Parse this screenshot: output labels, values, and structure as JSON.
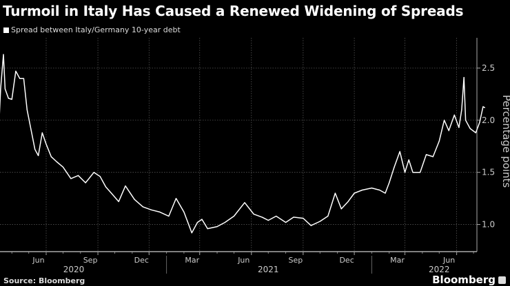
{
  "chart_data": {
    "type": "line",
    "title": "Turmoil in Italy Has Caused a Renewed Widening of Spreads",
    "legend": [
      "Spread between Italy/Germany 10-year debt"
    ],
    "legend_placement": "top-left",
    "xlabel": "",
    "ylabel": "Percentage points",
    "ylim": [
      0.74,
      2.79
    ],
    "xlim": [
      "2020-03-09",
      "2022-07-31"
    ],
    "grid": true,
    "y_ticks": [
      "2.5",
      "2.0",
      "1.5",
      "1.0"
    ],
    "y_tick_values": [
      2.5,
      2.0,
      1.5,
      1.0
    ],
    "x_ticks": [
      {
        "label": "Jun",
        "date": "2020-06-01"
      },
      {
        "label": "Sep",
        "date": "2020-09-01"
      },
      {
        "label": "Dec",
        "date": "2020-12-01"
      },
      {
        "label": "Mar",
        "date": "2021-03-01"
      },
      {
        "label": "Jun",
        "date": "2021-06-01"
      },
      {
        "label": "Sep",
        "date": "2021-09-01"
      },
      {
        "label": "Dec",
        "date": "2021-12-01"
      },
      {
        "label": "Mar",
        "date": "2022-03-01"
      },
      {
        "label": "Jun",
        "date": "2022-06-01"
      }
    ],
    "years": [
      {
        "label": "2020",
        "date": "2020-07-20"
      },
      {
        "label": "2021",
        "date": "2021-07-01"
      },
      {
        "label": "2022",
        "date": "2022-05-01"
      }
    ],
    "year_breaks": [
      "2021-01-01",
      "2022-01-01"
    ],
    "series": [
      {
        "name": "Spread between Italy/Germany 10-year debt",
        "color": "#ffffff",
        "x": [
          "2020-03-09",
          "2020-03-12",
          "2020-03-17",
          "2020-03-20",
          "2020-03-26",
          "2020-04-01",
          "2020-04-08",
          "2020-04-15",
          "2020-04-22",
          "2020-04-28",
          "2020-05-05",
          "2020-05-12",
          "2020-05-18",
          "2020-05-25",
          "2020-06-01",
          "2020-06-10",
          "2020-06-20",
          "2020-07-01",
          "2020-07-15",
          "2020-07-28",
          "2020-08-10",
          "2020-08-25",
          "2020-09-05",
          "2020-09-15",
          "2020-09-25",
          "2020-10-08",
          "2020-10-20",
          "2020-11-05",
          "2020-11-20",
          "2020-12-05",
          "2020-12-20",
          "2021-01-05",
          "2021-01-18",
          "2021-02-01",
          "2021-02-15",
          "2021-02-25",
          "2021-03-05",
          "2021-03-15",
          "2021-04-01",
          "2021-04-15",
          "2021-05-01",
          "2021-05-20",
          "2021-06-05",
          "2021-06-20",
          "2021-07-01",
          "2021-07-15",
          "2021-08-01",
          "2021-08-15",
          "2021-09-01",
          "2021-09-15",
          "2021-10-01",
          "2021-10-15",
          "2021-10-28",
          "2021-11-08",
          "2021-11-20",
          "2021-12-01",
          "2021-12-15",
          "2022-01-01",
          "2022-01-15",
          "2022-01-25",
          "2022-02-01",
          "2022-02-10",
          "2022-02-20",
          "2022-03-01",
          "2022-03-08",
          "2022-03-15",
          "2022-03-28",
          "2022-04-08",
          "2022-04-20",
          "2022-05-01",
          "2022-05-10",
          "2022-05-18",
          "2022-05-28",
          "2022-06-05",
          "2022-06-10",
          "2022-06-14",
          "2022-06-17",
          "2022-06-25",
          "2022-07-05",
          "2022-07-12",
          "2022-07-18",
          "2022-07-21"
        ],
        "values": [
          1.95,
          2.3,
          2.63,
          2.3,
          2.21,
          2.2,
          2.47,
          2.4,
          2.4,
          2.1,
          1.91,
          1.72,
          1.66,
          1.88,
          1.77,
          1.65,
          1.6,
          1.55,
          1.44,
          1.47,
          1.4,
          1.5,
          1.46,
          1.36,
          1.3,
          1.22,
          1.37,
          1.24,
          1.17,
          1.14,
          1.12,
          1.08,
          1.25,
          1.12,
          0.92,
          1.02,
          1.05,
          0.96,
          0.98,
          1.02,
          1.08,
          1.21,
          1.1,
          1.07,
          1.04,
          1.08,
          1.02,
          1.07,
          1.06,
          0.99,
          1.03,
          1.08,
          1.3,
          1.15,
          1.22,
          1.3,
          1.33,
          1.35,
          1.33,
          1.3,
          1.4,
          1.55,
          1.7,
          1.5,
          1.62,
          1.5,
          1.5,
          1.67,
          1.65,
          1.8,
          2.0,
          1.9,
          2.05,
          1.93,
          2.1,
          2.41,
          2.0,
          1.92,
          1.88,
          1.98,
          2.13,
          2.12
        ]
      }
    ]
  },
  "legend_label": "Spread between Italy/Germany 10-year debt",
  "source": "Source: Bloomberg",
  "brand": "Bloomberg"
}
